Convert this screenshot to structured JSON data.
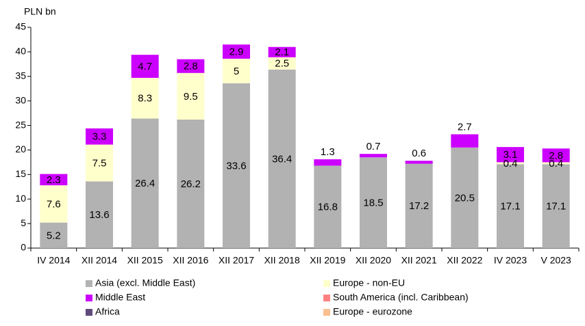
{
  "chart_data": {
    "type": "stacked_bar",
    "y_label": "PLN bn",
    "categories": [
      "IV 2014",
      "XII 2014",
      "XII 2015",
      "XII 2016",
      "XII 2017",
      "XII 2018",
      "XII 2019",
      "XII 2020",
      "XII 2021",
      "XII 2022",
      "IV 2023",
      "V 2023"
    ],
    "series": [
      {
        "name": "Asia (excl. Middle East)",
        "color": "#b2b2b2",
        "values": [
          5.2,
          13.6,
          26.4,
          26.2,
          33.6,
          36.4,
          16.8,
          18.5,
          17.2,
          20.5,
          17.1,
          17.1
        ]
      },
      {
        "name": "Europe - non-EU",
        "color": "#ffffcc",
        "values": [
          7.6,
          7.5,
          8.3,
          9.5,
          5.0,
          2.5,
          0,
          0,
          0,
          0,
          0.4,
          0.4
        ]
      },
      {
        "name": "Middle East",
        "color": "#cc00ff",
        "values": [
          2.3,
          3.3,
          4.7,
          2.8,
          2.9,
          2.1,
          1.3,
          0.7,
          0.6,
          2.7,
          3.1,
          2.8
        ]
      },
      {
        "name": "South America (incl. Caribbean)",
        "color": "#ff8080",
        "values": [
          0,
          0,
          0,
          0,
          0,
          0,
          0,
          0,
          0,
          0,
          0,
          0
        ]
      },
      {
        "name": "Africa",
        "color": "#604a7b",
        "values": [
          0,
          0,
          0,
          0,
          0,
          0,
          0,
          0,
          0,
          0,
          0,
          0
        ]
      },
      {
        "name": "Europe - eurozone",
        "color": "#fac090",
        "values": [
          0,
          0,
          0,
          0,
          0,
          0,
          0,
          0,
          0,
          0,
          0,
          0
        ]
      }
    ],
    "ylim": [
      0,
      45
    ],
    "yticks": [
      0,
      5,
      10,
      15,
      20,
      25,
      30,
      35,
      40,
      45
    ]
  }
}
